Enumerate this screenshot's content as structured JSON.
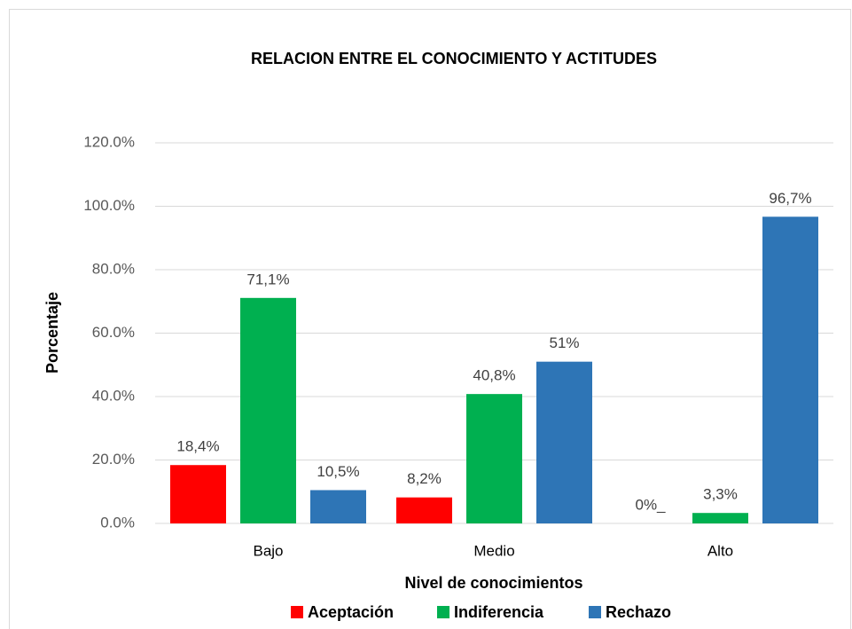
{
  "chart_data": {
    "type": "bar",
    "title": "RELACION ENTRE EL CONOCIMIENTO Y ACTITUDES",
    "x_label": "Nivel de conocimientos",
    "y_label": "Porcentaje",
    "categories": [
      "Bajo",
      "Medio",
      "Alto"
    ],
    "series": [
      {
        "name": "Aceptación",
        "color": "#ff0000",
        "values": [
          18.4,
          8.2,
          0
        ],
        "value_labels": [
          "18,4%",
          "8,2%",
          "0%_"
        ]
      },
      {
        "name": "Indiferencia",
        "color": "#00b050",
        "values": [
          71.1,
          40.8,
          3.3
        ],
        "value_labels": [
          "71,1%",
          "40,8%",
          "3,3%"
        ]
      },
      {
        "name": "Rechazo",
        "color": "#2e75b6",
        "values": [
          10.5,
          51,
          96.7
        ],
        "value_labels": [
          "10,5%",
          "51%",
          "96,7%"
        ]
      }
    ],
    "ylim": [
      0,
      120
    ],
    "yticks": [
      {
        "value": 0,
        "label": "0.0%"
      },
      {
        "value": 20,
        "label": "20.0%"
      },
      {
        "value": 40,
        "label": "40.0%"
      },
      {
        "value": 60,
        "label": "60.0%"
      },
      {
        "value": 80,
        "label": "80.0%"
      },
      {
        "value": 100,
        "label": "100.0%"
      },
      {
        "value": 120,
        "label": "120.0%"
      }
    ],
    "grid": true,
    "legend": "bottom"
  }
}
